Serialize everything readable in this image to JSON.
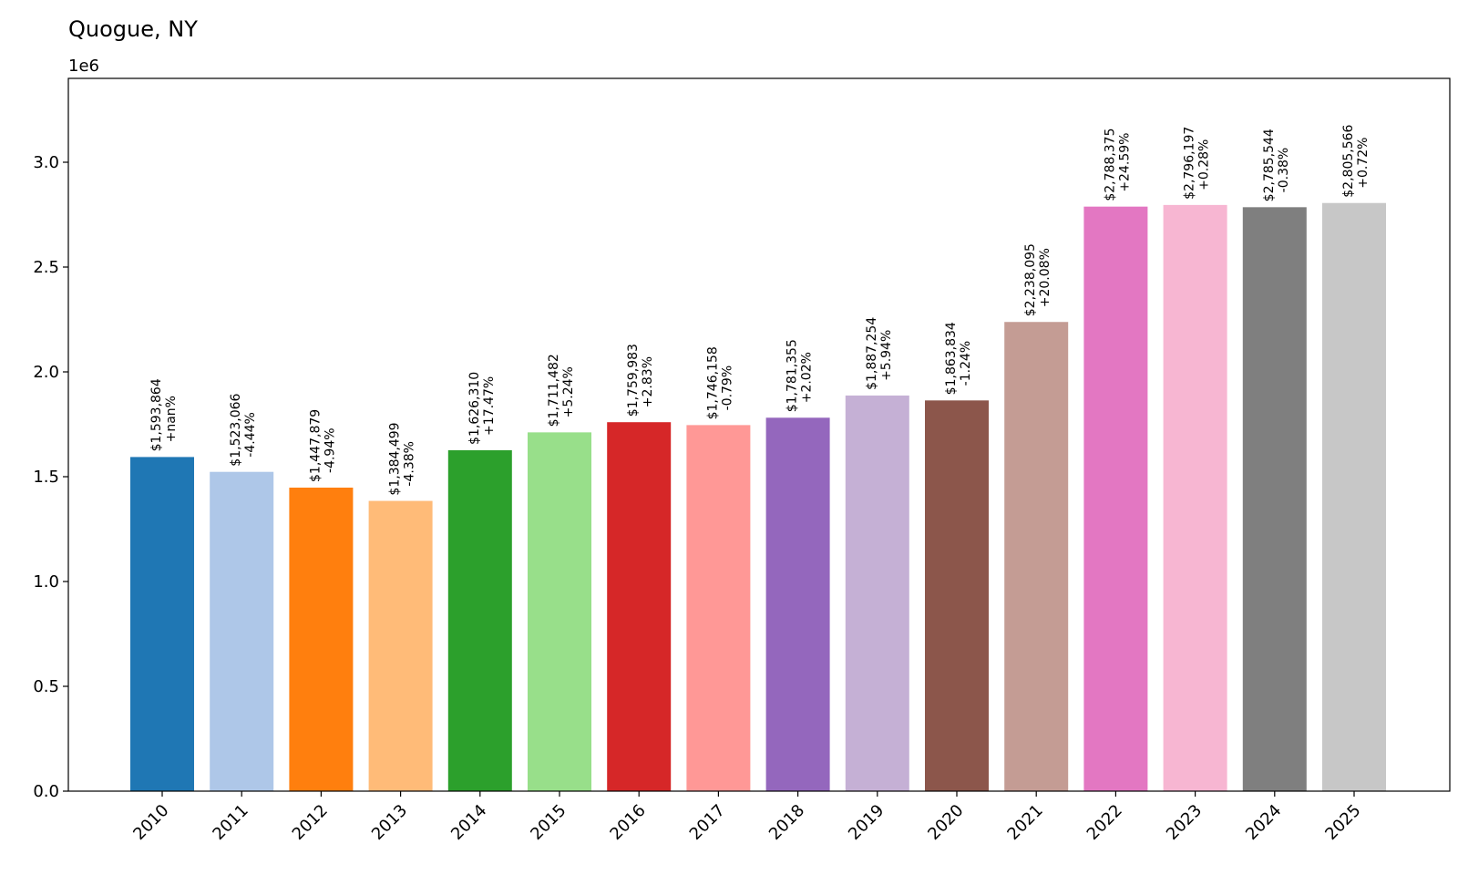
{
  "chart_data": {
    "type": "bar",
    "title": "Quogue, NY",
    "xlabel": "",
    "ylabel": "",
    "y_scale_label": "1e6",
    "ylim": [
      0,
      3400000
    ],
    "yticks": [
      0,
      500000,
      1000000,
      1500000,
      2000000,
      2500000,
      3000000
    ],
    "ytick_labels": [
      "0.0",
      "0.5",
      "1.0",
      "1.5",
      "2.0",
      "2.5",
      "3.0"
    ],
    "categories": [
      "2010",
      "2011",
      "2012",
      "2013",
      "2014",
      "2015",
      "2016",
      "2017",
      "2018",
      "2019",
      "2020",
      "2021",
      "2022",
      "2023",
      "2024",
      "2025"
    ],
    "values": [
      1593864,
      1523066,
      1447879,
      1384499,
      1626310,
      1711482,
      1759983,
      1746158,
      1781355,
      1887254,
      1863834,
      2238095,
      2788375,
      2796197,
      2785544,
      2805566
    ],
    "value_labels": [
      "$1,593,864",
      "$1,523,066",
      "$1,447,879",
      "$1,384,499",
      "$1,626,310",
      "$1,711,482",
      "$1,759,983",
      "$1,746,158",
      "$1,781,355",
      "$1,887,254",
      "$1,863,834",
      "$2,238,095",
      "$2,788,375",
      "$2,796,197",
      "$2,785,544",
      "$2,805,566"
    ],
    "change_labels": [
      "+nan%",
      "-4.44%",
      "-4.94%",
      "-4.38%",
      "+17.47%",
      "+5.24%",
      "+2.83%",
      "-0.79%",
      "+2.02%",
      "+5.94%",
      "-1.24%",
      "+20.08%",
      "+24.59%",
      "+0.28%",
      "-0.38%",
      "+0.72%"
    ],
    "colors": [
      "#1f77b4",
      "#aec7e8",
      "#ff7f0e",
      "#ffbb78",
      "#2ca02c",
      "#98df8a",
      "#d62728",
      "#ff9896",
      "#9467bd",
      "#c5b0d5",
      "#8c564b",
      "#c49c94",
      "#e377c2",
      "#f7b6d2",
      "#7f7f7f",
      "#c7c7c7"
    ],
    "grid": false,
    "legend": "none"
  }
}
